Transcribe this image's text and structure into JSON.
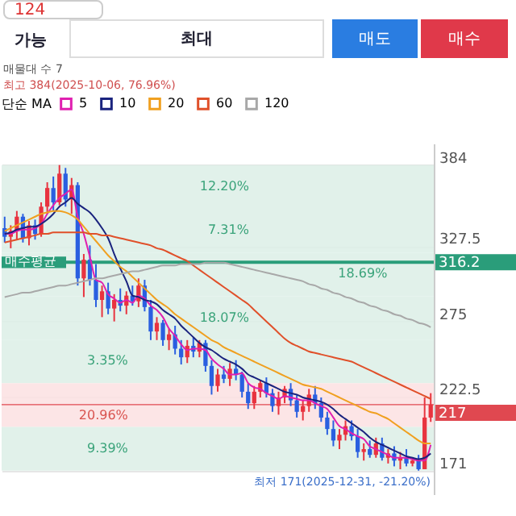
{
  "chart_data": {
    "type": "candlestick",
    "legend_title": "단순 MA",
    "annotations": [
      "124",
      "가능",
      "최대",
      "매도",
      "매수",
      "매물대 수 7",
      "최고 384(2025-10-06, 76.96%)",
      {
        "text": "최저 171(2025-12-31, -21.20%)",
        "y": 171
      },
      "316.2",
      "217"
    ],
    "categories": [
      null,
      null,
      null,
      null,
      null,
      null,
      null,
      null,
      null,
      null,
      null,
      null,
      null,
      null,
      null,
      null,
      null,
      null,
      null,
      null,
      null,
      null,
      null,
      null,
      null,
      null,
      null,
      null,
      null,
      null,
      null,
      null,
      null,
      null,
      null,
      null,
      null,
      null,
      null,
      null,
      null,
      null,
      null,
      null,
      null,
      null,
      null,
      null,
      null,
      null,
      null,
      null,
      null,
      null,
      null,
      null,
      null,
      null,
      null,
      null,
      null,
      null,
      null,
      null,
      null,
      null,
      null,
      null,
      null,
      null,
      null
    ],
    "ohlc": [
      [
        340,
        348,
        330,
        334
      ],
      [
        334,
        342,
        326,
        338
      ],
      [
        338,
        352,
        332,
        348
      ],
      [
        348,
        350,
        330,
        333
      ],
      [
        333,
        345,
        328,
        342
      ],
      [
        342,
        346,
        332,
        336
      ],
      [
        336,
        358,
        334,
        355
      ],
      [
        355,
        372,
        350,
        368
      ],
      [
        368,
        376,
        352,
        358
      ],
      [
        358,
        384,
        356,
        378
      ],
      [
        378,
        382,
        355,
        360
      ],
      [
        360,
        375,
        350,
        370
      ],
      [
        370,
        372,
        300,
        305
      ],
      [
        305,
        322,
        292,
        318
      ],
      [
        318,
        328,
        300,
        304
      ],
      [
        304,
        315,
        285,
        290
      ],
      [
        290,
        300,
        278,
        296
      ],
      [
        296,
        302,
        280,
        284
      ],
      [
        284,
        294,
        275,
        290
      ],
      [
        290,
        298,
        282,
        286
      ],
      [
        286,
        296,
        280,
        293
      ],
      [
        293,
        300,
        286,
        289
      ],
      [
        289,
        305,
        285,
        300
      ],
      [
        300,
        304,
        282,
        285
      ],
      [
        285,
        290,
        262,
        268
      ],
      [
        268,
        278,
        262,
        274
      ],
      [
        274,
        276,
        258,
        262
      ],
      [
        262,
        270,
        255,
        266
      ],
      [
        266,
        272,
        252,
        256
      ],
      [
        256,
        262,
        245,
        250
      ],
      [
        250,
        262,
        246,
        258
      ],
      [
        258,
        264,
        250,
        254
      ],
      [
        254,
        262,
        250,
        260
      ],
      [
        260,
        262,
        240,
        244
      ],
      [
        244,
        248,
        224,
        230
      ],
      [
        230,
        242,
        226,
        238
      ],
      [
        238,
        244,
        232,
        235
      ],
      [
        235,
        246,
        230,
        242
      ],
      [
        242,
        248,
        234,
        238
      ],
      [
        238,
        240,
        222,
        226
      ],
      [
        226,
        232,
        214,
        218
      ],
      [
        218,
        230,
        214,
        226
      ],
      [
        226,
        234,
        222,
        232
      ],
      [
        232,
        236,
        222,
        225
      ],
      [
        225,
        228,
        212,
        216
      ],
      [
        216,
        226,
        210,
        222
      ],
      [
        222,
        230,
        218,
        228
      ],
      [
        228,
        232,
        216,
        220
      ],
      [
        220,
        224,
        208,
        212
      ],
      [
        212,
        220,
        206,
        216
      ],
      [
        216,
        228,
        212,
        224
      ],
      [
        224,
        230,
        214,
        218
      ],
      [
        218,
        222,
        205,
        208
      ],
      [
        208,
        212,
        196,
        200
      ],
      [
        200,
        206,
        188,
        192
      ],
      [
        192,
        200,
        186,
        196
      ],
      [
        196,
        206,
        192,
        202
      ],
      [
        202,
        206,
        192,
        195
      ],
      [
        195,
        200,
        180,
        184
      ],
      [
        184,
        190,
        178,
        186
      ],
      [
        186,
        192,
        180,
        182
      ],
      [
        182,
        194,
        180,
        190
      ],
      [
        190,
        194,
        178,
        180
      ],
      [
        180,
        186,
        176,
        183
      ],
      [
        183,
        188,
        174,
        178
      ],
      [
        178,
        184,
        172,
        180
      ],
      [
        180,
        186,
        174,
        176
      ],
      [
        176,
        180,
        174,
        178
      ],
      [
        178,
        182,
        171,
        172
      ],
      [
        172,
        222,
        172,
        208
      ],
      [
        208,
        225,
        205,
        217
      ]
    ],
    "series": [
      {
        "name": "5",
        "type": "line",
        "color": "#e020b0",
        "values": [
          336,
          336,
          338,
          339,
          339,
          340,
          343,
          350,
          356,
          361,
          364,
          367,
          348,
          336,
          320,
          304,
          302,
          294,
          291,
          288,
          290,
          288,
          293,
          291,
          286,
          283,
          278,
          270,
          265,
          259,
          255,
          256,
          256,
          255,
          249,
          245,
          242,
          238,
          238,
          239,
          232,
          229,
          228,
          225,
          223,
          221,
          223,
          222,
          221,
          220,
          220,
          218,
          216,
          214,
          208,
          202,
          200,
          197,
          195,
          193,
          188,
          186,
          184,
          182,
          180,
          180,
          180,
          179,
          178,
          178,
          189
        ]
      },
      {
        "name": "10",
        "type": "line",
        "color": "#1a237e",
        "values": [
          336,
          337,
          339,
          340,
          341,
          341,
          343,
          346,
          350,
          355,
          358,
          361,
          357,
          354,
          351,
          346,
          340,
          333,
          322,
          312,
          303,
          293,
          292,
          290,
          289,
          287,
          283,
          280,
          277,
          272,
          268,
          264,
          260,
          257,
          255,
          252,
          249,
          247,
          245,
          242,
          238,
          236,
          234,
          232,
          230,
          228,
          226,
          225,
          224,
          222,
          221,
          220,
          219,
          217,
          214,
          210,
          207,
          204,
          201,
          198,
          194,
          191,
          189,
          187,
          185,
          183,
          181,
          180,
          179,
          180,
          183
        ]
      },
      {
        "name": "20",
        "type": "line",
        "color": "#f0a020",
        "values": [
          338,
          340,
          342,
          344,
          346,
          348,
          350,
          351,
          352,
          352,
          351,
          349,
          346,
          341,
          336,
          331,
          326,
          321,
          317,
          313,
          310,
          306,
          302,
          298,
          294,
          290,
          287,
          284,
          280,
          277,
          274,
          271,
          268,
          265,
          262,
          260,
          257,
          255,
          253,
          251,
          249,
          247,
          245,
          243,
          241,
          239,
          237,
          235,
          233,
          231,
          230,
          229,
          228,
          226,
          224,
          222,
          220,
          218,
          216,
          214,
          212,
          211,
          209,
          207,
          204,
          201,
          198,
          195,
          192,
          190,
          190
        ]
      },
      {
        "name": "60",
        "type": "line",
        "color": "#e0502a",
        "values": [
          330,
          331,
          332,
          333,
          334,
          335,
          336,
          336,
          337,
          337,
          337,
          337,
          337,
          337,
          336,
          336,
          335,
          335,
          334,
          333,
          332,
          331,
          330,
          329,
          328,
          326,
          325,
          323,
          321,
          319,
          317,
          314,
          311,
          308,
          305,
          302,
          299,
          296,
          293,
          290,
          287,
          283,
          279,
          275,
          271,
          267,
          263,
          260,
          258,
          256,
          254,
          253,
          252,
          251,
          250,
          249,
          248,
          247,
          245,
          243,
          241,
          239,
          237,
          235,
          233,
          231,
          229,
          227,
          225,
          223,
          221
        ]
      },
      {
        "name": "120",
        "type": "line",
        "color": "#a8a8a8",
        "values": [
          292,
          293,
          294,
          295,
          295,
          296,
          297,
          298,
          299,
          300,
          300,
          301,
          302,
          303,
          304,
          305,
          305,
          306,
          307,
          308,
          309,
          310,
          310,
          311,
          312,
          313,
          314,
          314,
          314,
          315,
          315,
          315,
          315,
          316,
          316,
          316,
          316,
          315,
          314,
          313,
          312,
          311,
          310,
          309,
          308,
          307,
          306,
          305,
          304,
          303,
          301,
          300,
          298,
          297,
          295,
          294,
          292,
          291,
          289,
          288,
          286,
          285,
          283,
          282,
          280,
          279,
          277,
          276,
          274,
          273,
          271
        ]
      }
    ],
    "bands": [
      {
        "axis": "y",
        "from": 353.5,
        "to": 384,
        "label": "12.20%",
        "color": "#dcefe6"
      },
      {
        "axis": "y",
        "from": 323,
        "to": 353.5,
        "label": "7.31%",
        "color": "#dcefe6"
      },
      {
        "axis": "y",
        "from": 292.5,
        "to": 323,
        "label": "18.69%",
        "color": "#dcefe6"
      },
      {
        "axis": "y",
        "from": 262,
        "to": 292.5,
        "label": "18.07%",
        "color": "#dcefe6"
      },
      {
        "axis": "y",
        "from": 232,
        "to": 262,
        "label": "3.35%",
        "color": "#dcefe6"
      },
      {
        "axis": "y",
        "from": 201.5,
        "to": 232,
        "label": "20.96%",
        "color": "#fbe0e2"
      },
      {
        "axis": "y",
        "from": 171,
        "to": 201.5,
        "label": "9.39%",
        "color": "#dcefe6"
      }
    ],
    "ref_lines": [
      {
        "axis": "y",
        "value": 316.2,
        "label": "매수평균",
        "color": "#2a9d7a"
      },
      {
        "axis": "y",
        "value": 217,
        "label": null,
        "color": "#e04850"
      }
    ],
    "ylim": [
      154,
      399
    ],
    "yticks": [
      384,
      {
        "value": 327.5,
        "label": "327.5"
      },
      275,
      {
        "value": 222.5,
        "label": "222.5"
      },
      171
    ],
    "grid": "y",
    "legend": "top left"
  }
}
